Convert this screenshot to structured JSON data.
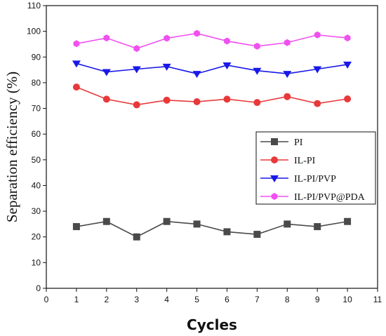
{
  "chart_data": {
    "type": "line",
    "xlabel": "Cycles",
    "ylabel": "Separation efficiency (%)",
    "xlim": [
      0,
      11
    ],
    "ylim": [
      0,
      110
    ],
    "x_ticks": [
      "0",
      "1",
      "2",
      "3",
      "4",
      "5",
      "6",
      "7",
      "8",
      "9",
      "10",
      "11"
    ],
    "y_ticks": [
      "0",
      "10",
      "20",
      "30",
      "40",
      "50",
      "60",
      "70",
      "80",
      "90",
      "100",
      "110"
    ],
    "x": [
      1,
      2,
      3,
      4,
      5,
      6,
      7,
      8,
      9,
      10
    ],
    "grid": false,
    "legend_position": "middle-right",
    "series": [
      {
        "name": "PI",
        "color": "#4a4a4a",
        "marker": "square",
        "values": [
          24,
          26,
          20,
          26,
          25,
          22,
          21,
          25,
          24,
          26
        ]
      },
      {
        "name": "IL-PI",
        "color": "#e8393a",
        "marker": "circle",
        "values": [
          78.3,
          73.6,
          71.4,
          73.2,
          72.6,
          73.6,
          72.3,
          74.6,
          71.9,
          73.7
        ]
      },
      {
        "name": "IL-PI/PVP",
        "color": "#1818e8",
        "marker": "triangle-down",
        "values": [
          87.5,
          84.2,
          85.3,
          86.3,
          83.5,
          86.8,
          84.7,
          83.5,
          85.3,
          87.1
        ]
      },
      {
        "name": "IL-PI/PVP@PDA",
        "color": "#f050f0",
        "marker": "hexagon",
        "values": [
          95.2,
          97.4,
          93.3,
          97.3,
          99.2,
          96.2,
          94.2,
          95.6,
          98.6,
          97.4
        ]
      }
    ]
  }
}
